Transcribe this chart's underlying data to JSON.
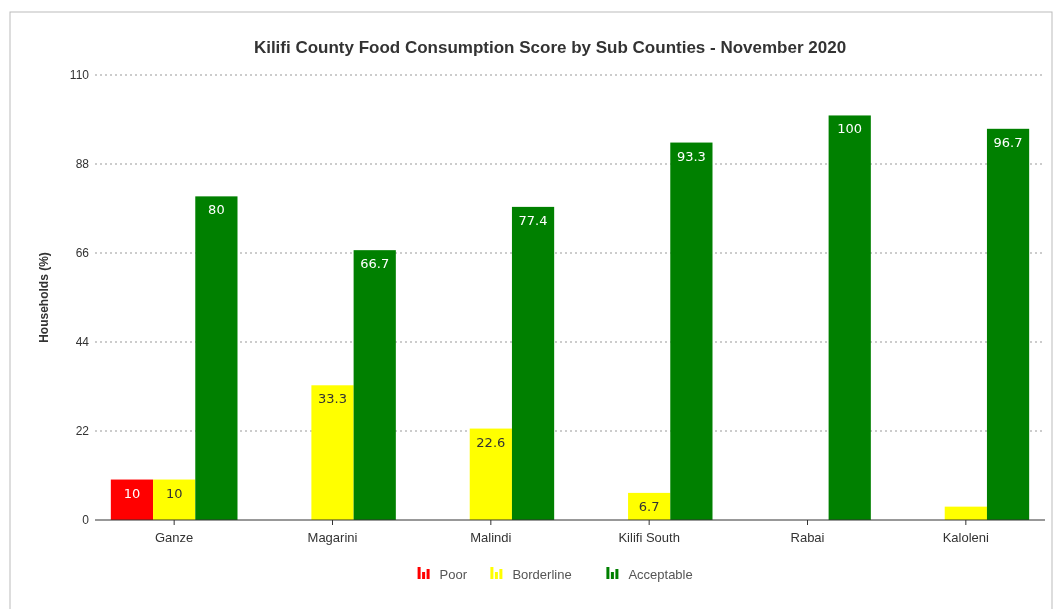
{
  "chart_data": {
    "type": "bar",
    "title": "Kilifi County Food Consumption Score by Sub Counties - November 2020",
    "ylabel": "Households (%)",
    "categories": [
      "Ganze",
      "Magarini",
      "Malindi",
      "Kilifi South",
      "Rabai",
      "Kaloleni"
    ],
    "series": [
      {
        "name": "Poor",
        "color": "#ff0000",
        "values": [
          10,
          0,
          0,
          0,
          0,
          0
        ],
        "value_labels": [
          "10",
          null,
          null,
          null,
          null,
          null
        ]
      },
      {
        "name": "Borderline",
        "color": "#ffff00",
        "values": [
          10,
          33.3,
          22.6,
          6.7,
          0,
          3.3
        ],
        "value_labels": [
          "10",
          "33.3",
          "22.6",
          "6.7",
          null,
          null
        ]
      },
      {
        "name": "Acceptable",
        "color": "#008000",
        "values": [
          80,
          66.7,
          77.4,
          93.3,
          100,
          96.7
        ],
        "value_labels": [
          "80",
          "66.7",
          "77.4",
          "93.3",
          "100",
          "96.7"
        ]
      }
    ],
    "ylim": [
      0,
      110
    ],
    "yticks": [
      0,
      22,
      44,
      66,
      88,
      110
    ],
    "grid": "y",
    "legend": "bottom"
  }
}
